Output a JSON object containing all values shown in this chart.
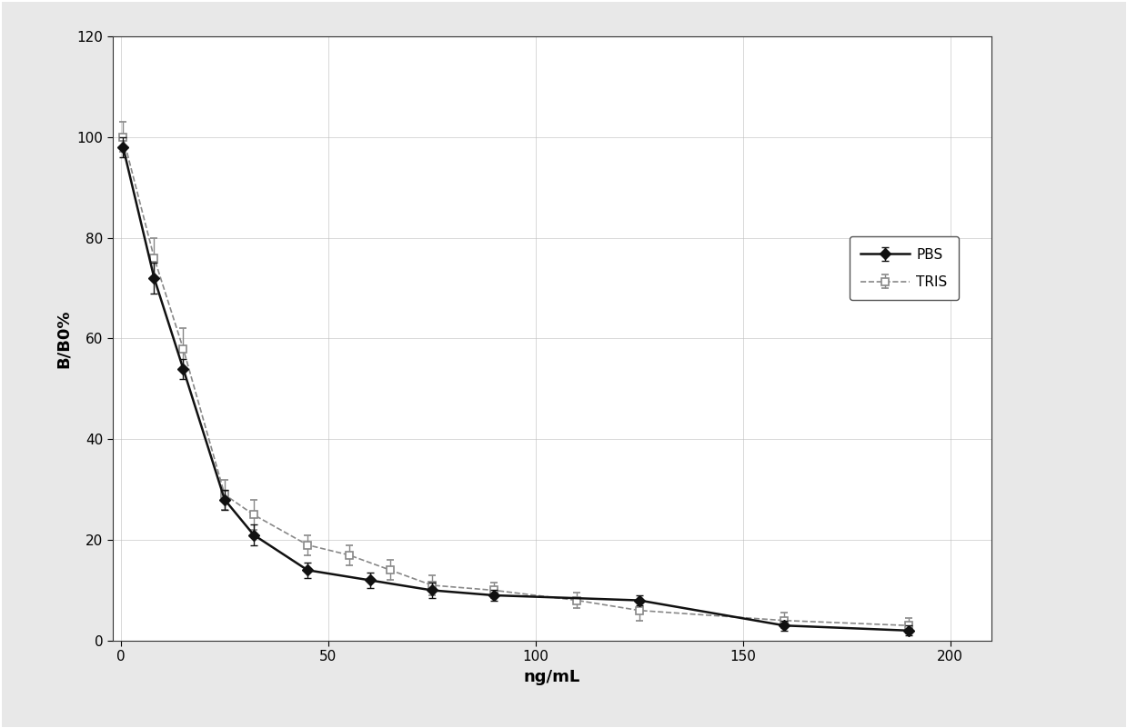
{
  "title": "",
  "xlabel": "ng/mL",
  "ylabel": "B/B0%",
  "xlim": [
    -2,
    210
  ],
  "ylim": [
    0,
    120
  ],
  "xticks": [
    0,
    50,
    100,
    150,
    200
  ],
  "yticks": [
    0,
    20,
    40,
    60,
    80,
    100,
    120
  ],
  "pbs_x": [
    0.5,
    8,
    15,
    25,
    32,
    45,
    60,
    75,
    90,
    125,
    160,
    190
  ],
  "pbs_y": [
    98,
    72,
    54,
    28,
    21,
    14,
    12,
    10,
    9,
    8,
    3,
    2
  ],
  "pbs_yerr": [
    2,
    3,
    2,
    2,
    2,
    1.5,
    1.5,
    1.5,
    1,
    1,
    1,
    1
  ],
  "tris_x": [
    0.5,
    8,
    15,
    25,
    32,
    45,
    55,
    65,
    75,
    90,
    110,
    125,
    160,
    190
  ],
  "tris_y": [
    100,
    76,
    58,
    29,
    25,
    19,
    17,
    14,
    11,
    10,
    8,
    6,
    4,
    3
  ],
  "tris_yerr": [
    3,
    4,
    4,
    3,
    3,
    2,
    2,
    2,
    2,
    1.5,
    1.5,
    2,
    1.5,
    1.5
  ],
  "pbs_color": "#111111",
  "tris_color": "#888888",
  "background_color": "#ffffff",
  "plot_bg_color": "#ffffff",
  "grid_color": "#bbbbbb",
  "border_color": "#444444",
  "legend_pbs": "PBS",
  "legend_tris": "TRIS",
  "outer_bg": "#e8e8e8"
}
